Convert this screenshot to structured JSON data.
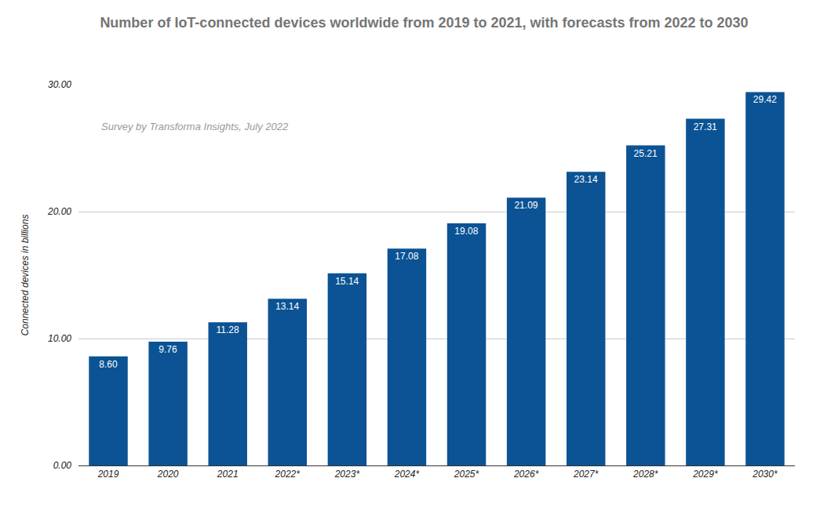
{
  "chart_data": {
    "type": "bar",
    "title": "Number of IoT-connected devices worldwide from 2019 to 2021, with forecasts from 2022 to 2030",
    "subtitle": "Survey by Transforma Insights, July 2022",
    "y_label": "Connected devices in billions",
    "categories": [
      "2019",
      "2020",
      "2021",
      "2022*",
      "2023*",
      "2024*",
      "2025*",
      "2026*",
      "2027*",
      "2028*",
      "2029*",
      "2030*"
    ],
    "values": [
      8.6,
      9.76,
      11.28,
      13.14,
      15.14,
      17.08,
      19.08,
      21.09,
      23.14,
      25.21,
      27.31,
      29.42
    ],
    "value_labels": [
      "8.60",
      "9.76",
      "11.28",
      "13.14",
      "15.14",
      "17.08",
      "19.08",
      "21.09",
      "23.14",
      "25.21",
      "27.31",
      "29.42"
    ],
    "color": "#0b5394",
    "ylim": [
      0,
      30
    ],
    "yticks": [
      {
        "value": 0,
        "label": "0.00"
      },
      {
        "value": 10,
        "label": "10.00"
      },
      {
        "value": 20,
        "label": "20.00"
      },
      {
        "value": 30,
        "label": "30.00"
      }
    ],
    "grid": true,
    "data_labels": true
  }
}
